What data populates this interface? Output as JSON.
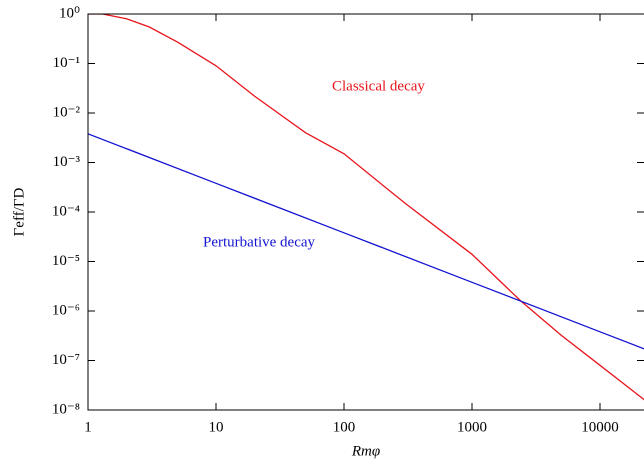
{
  "chart_data": {
    "type": "line",
    "xlabel": "Rmφ",
    "ylabel": "Γeff/ΓD",
    "log_x": true,
    "log_y": true,
    "xlim": [
      1,
      23000
    ],
    "ylim": [
      1e-08,
      1
    ],
    "xticks": [
      1,
      10,
      100,
      1000,
      10000
    ],
    "yticks": [
      {
        "value": 1e-08,
        "label": "10⁻⁸"
      },
      {
        "value": 1e-07,
        "label": "10⁻⁷"
      },
      {
        "value": 1e-06,
        "label": "10⁻⁶"
      },
      {
        "value": 1e-05,
        "label": "10⁻⁵"
      },
      {
        "value": 0.0001,
        "label": "10⁻⁴"
      },
      {
        "value": 0.001,
        "label": "10⁻³"
      },
      {
        "value": 0.01,
        "label": "10⁻²"
      },
      {
        "value": 0.1,
        "label": "10⁻¹"
      },
      {
        "value": 1,
        "label": "10⁰"
      }
    ],
    "annotations": [
      "Classical decay",
      "Perturbative decay"
    ],
    "series": [
      {
        "color": "#e8141c",
        "x": [
          1,
          1.3,
          2,
          3,
          5,
          10,
          20,
          50,
          100,
          300,
          1000,
          2400,
          5000,
          10000,
          23000
        ],
        "values": [
          1.0,
          1.0,
          0.8,
          0.55,
          0.27,
          0.09,
          0.022,
          0.004,
          0.0015,
          0.00015,
          1.4e-05,
          1.6e-06,
          3.2e-07,
          8e-08,
          1.5e-08
        ]
      },
      {
        "color": "#1414d2",
        "x": [
          1,
          10,
          100,
          1000,
          10000,
          23000
        ],
        "values": [
          0.0038,
          0.00038,
          3.8e-05,
          3.8e-06,
          3.8e-07,
          1.65e-07
        ]
      }
    ]
  }
}
